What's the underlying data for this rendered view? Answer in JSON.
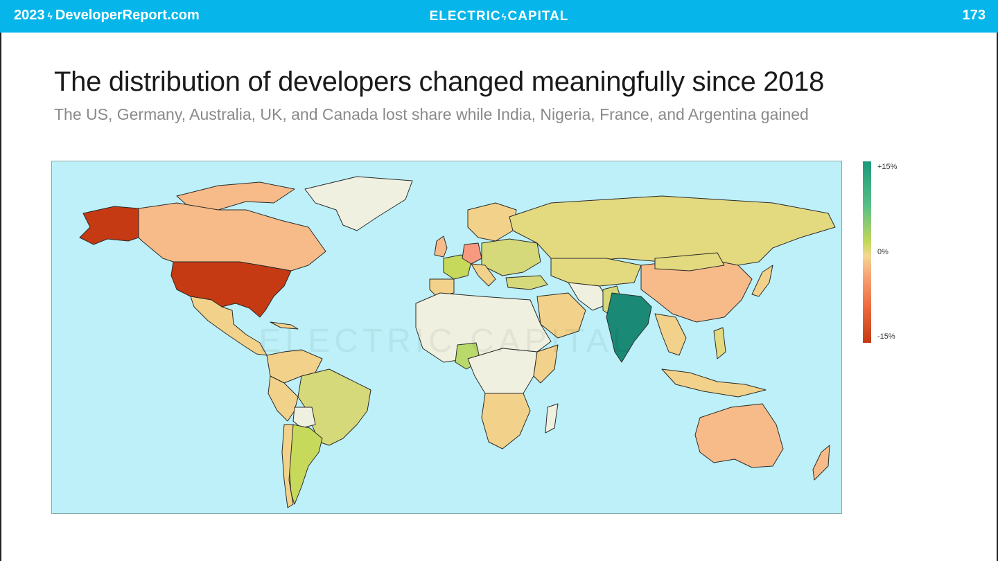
{
  "header": {
    "left_year": "2023",
    "left_site": "DeveloperReport.com",
    "brand_part1": "ELECTRIC",
    "brand_part2": "CAPITAL",
    "page_number": "173"
  },
  "slide": {
    "title": "The distribution of developers changed meaningfully since 2018",
    "subtitle": "The US, Germany, Australia, UK, and Canada lost share while India, Nigeria, France, and Argentina gained"
  },
  "watermark": "ELECTRIC CAPITAL",
  "legend": {
    "max_label": "+15%",
    "mid_label": "0%",
    "min_label": "-15%",
    "colors": {
      "max": "#1a9a7a",
      "mid": "#f4d792",
      "min": "#c53a12"
    }
  },
  "colors": {
    "header_bg": "#06b6ea",
    "ocean": "#bdf0f8",
    "us": "#c53a12",
    "canada": "#f7bb8a",
    "india": "#1a8a76",
    "nigeria": "#b9d96a",
    "germany": "#f79a80",
    "france": "#c6d95a",
    "argentina": "#c6d95a",
    "australia": "#f7bb8a",
    "neutral": "#f0f0e0",
    "slight_neg": "#f2d28a",
    "slight_pos": "#d6d97a"
  }
}
